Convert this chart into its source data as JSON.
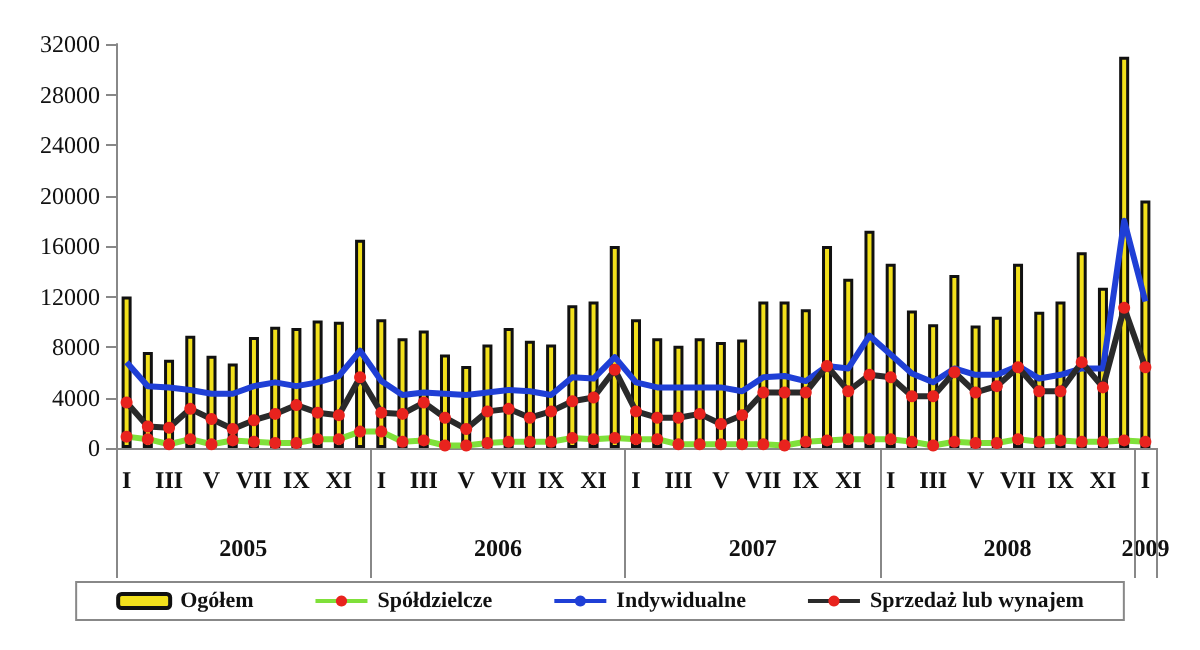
{
  "chart_data": {
    "type": "bar",
    "categories": [
      "I",
      null,
      "III",
      null,
      "V",
      null,
      "VII",
      null,
      "IX",
      null,
      "XI",
      null,
      "I",
      null,
      "III",
      null,
      "V",
      null,
      "VII",
      null,
      "IX",
      null,
      "XI",
      null,
      "I",
      null,
      "III",
      null,
      "V",
      null,
      "VII",
      null,
      "IX",
      null,
      "XI",
      null,
      "I",
      null,
      "III",
      null,
      "V",
      null,
      "VII",
      null,
      "IX",
      null,
      "XI",
      null,
      "I"
    ],
    "annotations": [
      "2005",
      "2006",
      "2007",
      "2008",
      "2009"
    ],
    "series": [
      {
        "name": "Ogółem",
        "color": "#f2e01c",
        "values": [
          12000,
          7600,
          7000,
          8900,
          7300,
          6700,
          8800,
          9600,
          9500,
          10100,
          10000,
          16500,
          10200,
          8700,
          9300,
          7400,
          6500,
          8200,
          9500,
          8500,
          8200,
          11300,
          11600,
          16000,
          10200,
          8700,
          8100,
          8700,
          8400,
          8600,
          11600,
          11600,
          11000,
          16000,
          13400,
          17200,
          14600,
          10900,
          9800,
          13700,
          9700,
          10400,
          14600,
          10800,
          11600,
          15500,
          12700,
          31000,
          19600
        ]
      },
      {
        "name": "Spółdzielcze",
        "type": "line",
        "color": "#7fe03a",
        "marker": "circle",
        "values": [
          900,
          700,
          300,
          700,
          300,
          600,
          500,
          400,
          400,
          700,
          700,
          1300,
          1300,
          500,
          600,
          200,
          200,
          400,
          500,
          500,
          500,
          800,
          700,
          800,
          700,
          700,
          300,
          300,
          300,
          300,
          300,
          200,
          500,
          600,
          700,
          700,
          700,
          500,
          200,
          500,
          400,
          400,
          700,
          500,
          600,
          500,
          500,
          600,
          500
        ]
      },
      {
        "name": "Indywidualne",
        "type": "line",
        "color": "#1f3fd6",
        "marker": "none",
        "values": [
          6800,
          4900,
          4800,
          4600,
          4300,
          4300,
          4900,
          5200,
          4900,
          5200,
          5700,
          7700,
          5300,
          4200,
          4400,
          4300,
          4200,
          4400,
          4600,
          4500,
          4200,
          5600,
          5500,
          7200,
          5200,
          4800,
          4800,
          4800,
          4800,
          4500,
          5600,
          5700,
          5300,
          6500,
          6300,
          8900,
          7400,
          5900,
          5200,
          6300,
          5800,
          5800,
          6500,
          5500,
          5800,
          6300,
          6300,
          18000,
          11600
        ]
      },
      {
        "name": "Sprzedaż lub wynajem",
        "type": "line",
        "color": "#2a2a2a",
        "marker": "circle",
        "values": [
          3600,
          1700,
          1600,
          3100,
          2300,
          1500,
          2200,
          2700,
          3400,
          2800,
          2600,
          5600,
          2800,
          2700,
          3600,
          2400,
          1500,
          2900,
          3100,
          2400,
          2900,
          3700,
          4000,
          6200,
          2900,
          2400,
          2400,
          2700,
          1900,
          2600,
          4400,
          4400,
          4400,
          6500,
          4500,
          5800,
          5600,
          4100,
          4100,
          6000,
          4400,
          4900,
          6400,
          4500,
          4500,
          6800,
          4800,
          11100,
          6400
        ]
      }
    ],
    "ylim": [
      0,
      32000
    ],
    "yticks": [
      0,
      4000,
      8000,
      12000,
      16000,
      20000,
      24000,
      28000,
      32000
    ],
    "grid": false,
    "legend": "bottom"
  }
}
